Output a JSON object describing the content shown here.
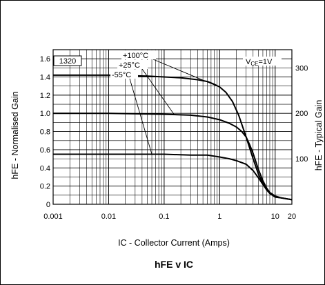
{
  "chart_data": {
    "type": "line",
    "title": "hFE v IC",
    "xlabel": "IC - Collector Current (Amps)",
    "ylabel": "hFE - Normalised Gain",
    "y2label": "hFE - Typical Gain",
    "x_scale": "log",
    "xlim": [
      0.001,
      20
    ],
    "ylim": [
      0,
      1.7
    ],
    "y2lim": [
      0,
      340
    ],
    "x_ticks": [
      {
        "value": 0.001,
        "label": "0.001"
      },
      {
        "value": 0.01,
        "label": "0.01"
      },
      {
        "value": 0.1,
        "label": "0.1"
      },
      {
        "value": 1,
        "label": "1"
      },
      {
        "value": 10,
        "label": "10"
      },
      {
        "value": 20,
        "label": "20"
      }
    ],
    "y_ticks": [
      {
        "value": 0,
        "label": "0"
      },
      {
        "value": 0.2,
        "label": "0.2"
      },
      {
        "value": 0.4,
        "label": "0.4"
      },
      {
        "value": 0.6,
        "label": "0.6"
      },
      {
        "value": 0.8,
        "label": "0.8"
      },
      {
        "value": 1.0,
        "label": "1.0"
      },
      {
        "value": 1.2,
        "label": "1.2"
      },
      {
        "value": 1.4,
        "label": "1.4"
      },
      {
        "value": 1.6,
        "label": "1.6"
      }
    ],
    "y2_ticks": [
      {
        "value": 100,
        "label": "100"
      },
      {
        "value": 200,
        "label": "200"
      },
      {
        "value": 300,
        "label": "300"
      }
    ],
    "grid": true,
    "part_label": "1320",
    "condition": {
      "main": "V",
      "sub": "CE",
      "rest": "=1V"
    },
    "series": [
      {
        "name": "+100°C",
        "x": [
          0.001,
          0.01,
          0.05,
          0.1,
          0.2,
          0.4,
          0.6,
          0.8,
          1.0,
          1.3,
          1.7,
          2.2,
          3.0,
          4.0,
          5.0,
          6.0,
          7.0,
          8.0,
          10.0,
          13.0,
          20.0
        ],
        "y": [
          1.42,
          1.42,
          1.41,
          1.4,
          1.39,
          1.37,
          1.35,
          1.32,
          1.29,
          1.23,
          1.13,
          0.98,
          0.74,
          0.5,
          0.33,
          0.23,
          0.16,
          0.12,
          0.08,
          0.07,
          0.05
        ]
      },
      {
        "name": "+25°C",
        "x": [
          0.001,
          0.01,
          0.1,
          0.3,
          0.6,
          1.0,
          1.5,
          2.0,
          2.5,
          3.0,
          3.5,
          4.0,
          5.0,
          6.0,
          7.0,
          8.0,
          10.0,
          13.0,
          20.0
        ],
        "y": [
          1.0,
          1.0,
          0.99,
          0.98,
          0.96,
          0.93,
          0.89,
          0.85,
          0.8,
          0.74,
          0.65,
          0.56,
          0.38,
          0.26,
          0.18,
          0.13,
          0.09,
          0.07,
          0.05
        ]
      },
      {
        "name": "-55°C",
        "x": [
          0.001,
          0.01,
          0.1,
          0.3,
          0.6,
          1.0,
          1.5,
          2.0,
          3.0,
          4.0,
          5.0,
          6.0,
          7.0,
          8.0,
          10.0,
          13.0,
          20.0
        ],
        "y": [
          0.55,
          0.55,
          0.55,
          0.54,
          0.54,
          0.52,
          0.5,
          0.48,
          0.44,
          0.37,
          0.29,
          0.22,
          0.16,
          0.12,
          0.08,
          0.07,
          0.05
        ]
      }
    ]
  }
}
